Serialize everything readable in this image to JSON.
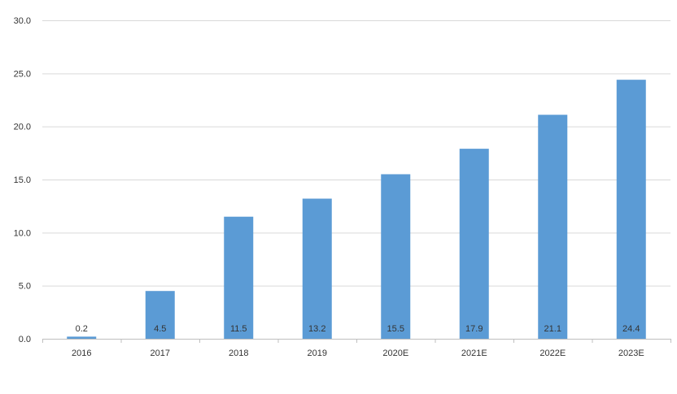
{
  "chart_data": {
    "type": "bar",
    "categories": [
      "2016",
      "2017",
      "2018",
      "2019",
      "2020E",
      "2021E",
      "2022E",
      "2023E"
    ],
    "values": [
      0.2,
      4.5,
      11.5,
      13.2,
      15.5,
      17.9,
      21.1,
      24.4
    ],
    "data_labels": [
      "0.2",
      "4.5",
      "11.5",
      "13.2",
      "15.5",
      "17.9",
      "21.1",
      "24.4"
    ],
    "ylim": [
      0,
      30
    ],
    "yticks": [
      "0.0",
      "5.0",
      "10.0",
      "15.0",
      "20.0",
      "25.0",
      "30.0"
    ],
    "grid": true,
    "bar_color": "#5b9bd5",
    "grid_color": "#d9d9d9",
    "text_color": "#333333"
  }
}
